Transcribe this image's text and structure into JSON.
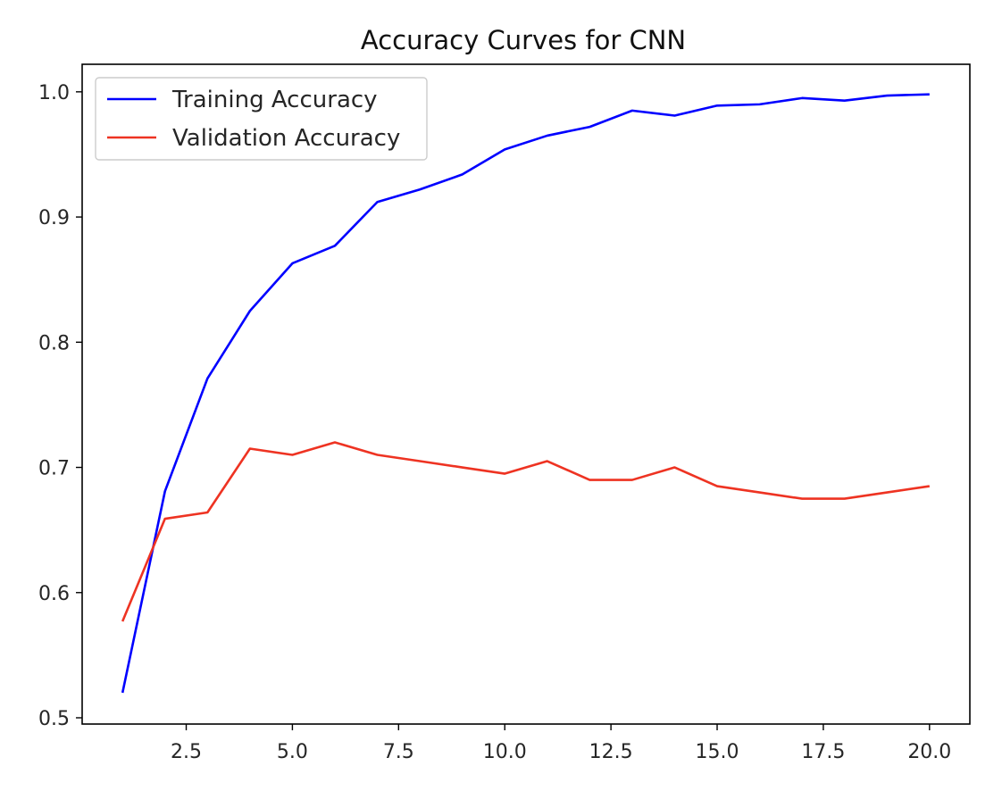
{
  "chart_data": {
    "type": "line",
    "title": "Accuracy Curves for CNN",
    "xlabel": "",
    "ylabel": "",
    "xlim": [
      0.05,
      20.95
    ],
    "ylim": [
      0.495,
      1.022
    ],
    "x_ticks": [
      2.5,
      5.0,
      7.5,
      10.0,
      12.5,
      15.0,
      17.5,
      20.0
    ],
    "x_tick_labels": [
      "2.5",
      "5.0",
      "7.5",
      "10.0",
      "12.5",
      "15.0",
      "17.5",
      "20.0"
    ],
    "y_ticks": [
      0.5,
      0.6,
      0.7,
      0.8,
      0.9,
      1.0
    ],
    "y_tick_labels": [
      "0.5",
      "0.6",
      "0.7",
      "0.8",
      "0.9",
      "1.0"
    ],
    "grid": false,
    "legend_position": "top-left",
    "x": [
      1,
      2,
      3,
      4,
      5,
      6,
      7,
      8,
      9,
      10,
      11,
      12,
      13,
      14,
      15,
      16,
      17,
      18,
      19,
      20
    ],
    "series": [
      {
        "name": "Training Accuracy",
        "color": "#0000ff",
        "values": [
          0.52,
          0.681,
          0.771,
          0.825,
          0.863,
          0.877,
          0.912,
          0.922,
          0.934,
          0.954,
          0.965,
          0.972,
          0.985,
          0.981,
          0.989,
          0.99,
          0.995,
          0.993,
          0.997,
          0.998
        ]
      },
      {
        "name": "Validation Accuracy",
        "color": "#ee3322",
        "values": [
          0.577,
          0.659,
          0.664,
          0.715,
          0.71,
          0.72,
          0.71,
          0.705,
          0.7,
          0.695,
          0.705,
          0.69,
          0.69,
          0.7,
          0.685,
          0.68,
          0.675,
          0.675,
          0.68,
          0.685
        ]
      }
    ]
  }
}
